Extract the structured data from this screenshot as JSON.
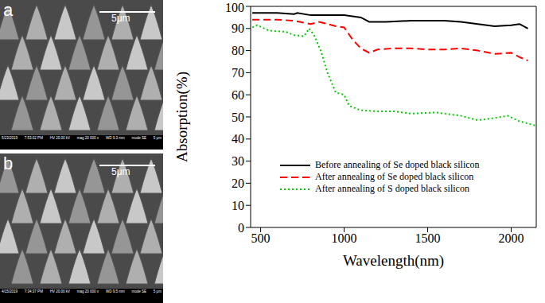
{
  "chart_data": {
    "type": "line",
    "x_label": "Wavelength(nm)",
    "y_label": "Absorption(%)",
    "xlim": [
      440,
      2150
    ],
    "xticks": [
      500,
      1000,
      1500,
      2000
    ],
    "ylim": [
      0,
      100
    ],
    "yticks": [
      0,
      10,
      20,
      30,
      40,
      50,
      60,
      70,
      80,
      90,
      100
    ],
    "grid": false,
    "legend": "center",
    "series": [
      {
        "name": "Before annealing of Se doped black silicon",
        "color": "#000000",
        "line_style": "solid",
        "x": [
          450,
          600,
          700,
          720,
          800,
          1000,
          1100,
          1150,
          1250,
          1400,
          1600,
          1700,
          1800,
          1900,
          2000,
          2050,
          2100
        ],
        "values": [
          97,
          97,
          96.5,
          97,
          96,
          96,
          95,
          93,
          93,
          93.5,
          93.5,
          93,
          92,
          91,
          91.5,
          92,
          90
        ]
      },
      {
        "name": "After annealing of Se doped black silicon",
        "color": "#ff0000",
        "line_style": "dashed",
        "x": [
          450,
          600,
          700,
          800,
          850,
          950,
          1000,
          1050,
          1100,
          1150,
          1200,
          1300,
          1400,
          1500,
          1600,
          1700,
          1800,
          1900,
          2000,
          2050,
          2100
        ],
        "values": [
          94,
          94,
          93.5,
          92,
          93,
          91,
          90.5,
          85,
          81,
          79,
          80.5,
          81,
          81,
          80.5,
          80.5,
          81,
          80,
          78.5,
          79,
          77,
          75.5
        ]
      },
      {
        "name": "After annealing of S doped black silicon",
        "color": "#00cc00",
        "line_style": "dotted",
        "x": [
          450,
          480,
          550,
          650,
          700,
          760,
          790,
          820,
          860,
          900,
          950,
          1000,
          1030,
          1100,
          1200,
          1300,
          1400,
          1550,
          1700,
          1800,
          1900,
          1980,
          2050,
          2150
        ],
        "values": [
          90.5,
          91.5,
          89,
          88.5,
          87,
          86.5,
          90,
          87,
          80,
          70,
          61,
          60,
          55,
          53,
          52.5,
          52.5,
          51.5,
          52,
          50.5,
          48.5,
          49.5,
          50.5,
          48,
          46
        ]
      }
    ]
  },
  "panels": [
    {
      "label": "a",
      "scale": "5μm",
      "info": [
        "5/23/2019",
        "7:53:02 PM",
        "HV 20.00 kV",
        "mag 20 000 x",
        "WD 9.3 mm",
        "mode SE",
        "5 μm"
      ]
    },
    {
      "label": "b",
      "scale": "5μm",
      "info": [
        "4/15/2019",
        "7:34:37 PM",
        "HV 20.00 kV",
        "mag 20 000 x",
        "WD 9.5 mm",
        "mode SE",
        "5 μm"
      ]
    }
  ]
}
